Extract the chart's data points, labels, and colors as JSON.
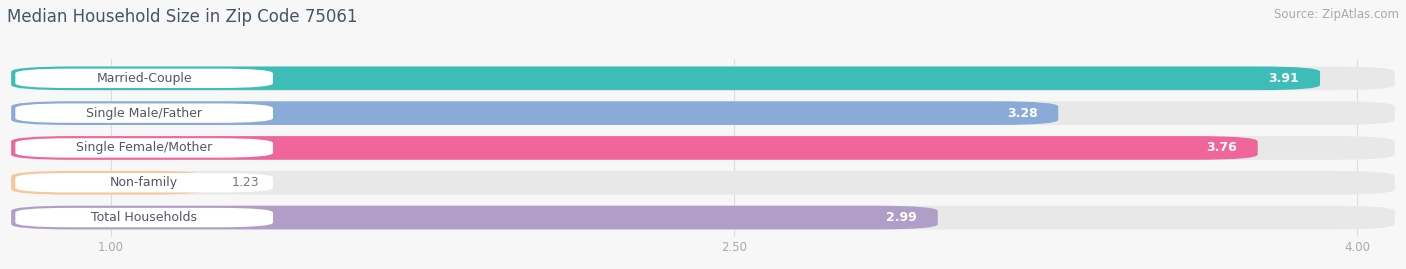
{
  "title": "Median Household Size in Zip Code 75061",
  "source": "Source: ZipAtlas.com",
  "categories": [
    "Married-Couple",
    "Single Male/Father",
    "Single Female/Mother",
    "Non-family",
    "Total Households"
  ],
  "values": [
    3.91,
    3.28,
    3.76,
    1.23,
    2.99
  ],
  "bar_colors": [
    "#3dbcb8",
    "#8aaad8",
    "#f0659a",
    "#f5c89a",
    "#b09ec8"
  ],
  "xlim_data": [
    0.75,
    4.1
  ],
  "x_min": 0.75,
  "x_max": 4.1,
  "xticks": [
    1.0,
    2.5,
    4.0
  ],
  "xlabel_labels": [
    "1.00",
    "2.50",
    "4.00"
  ],
  "label_fontsize": 9.0,
  "value_fontsize": 9.0,
  "title_fontsize": 12,
  "source_fontsize": 8.5,
  "background_color": "#f7f7f7",
  "bar_bg_color": "#e8e8e8",
  "label_bg_color": "#ffffff",
  "label_text_color": "#555566",
  "title_color": "#445566",
  "source_color": "#aaaaaa",
  "tick_color": "#aaaaaa",
  "grid_color": "#dddddd",
  "bar_height": 0.68,
  "bar_gap": 0.12
}
